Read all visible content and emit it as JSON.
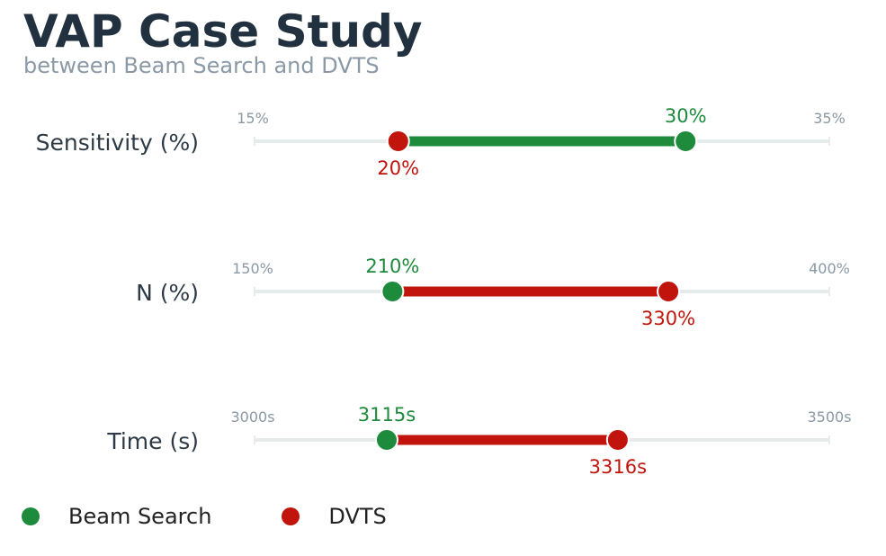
{
  "chart_data": {
    "type": "dumbbell",
    "title": "VAP Case Study",
    "subtitle": "between Beam Search and DVTS",
    "legend_placement": "bottom-left",
    "series": [
      {
        "name": "Beam Search",
        "color": "#1e8a3c"
      },
      {
        "name": "DVTS",
        "color": "#c0140c"
      }
    ],
    "rows": [
      {
        "label": "Sensitivity (%)",
        "min": 15,
        "max": 35,
        "min_label": "15%",
        "max_label": "35%",
        "beam": 30,
        "beam_label": "30%",
        "dvts": 20,
        "dvts_label": "20%",
        "bar_color": "#1e8a3c"
      },
      {
        "label": "N (%)",
        "min": 150,
        "max": 400,
        "min_label": "150%",
        "max_label": "400%",
        "beam": 210,
        "beam_label": "210%",
        "dvts": 330,
        "dvts_label": "330%",
        "bar_color": "#c0140c"
      },
      {
        "label": "Time (s)",
        "min": 3000,
        "max": 3500,
        "min_label": "3000s",
        "max_label": "3500s",
        "beam": 3115,
        "beam_label": "3115s",
        "dvts": 3316,
        "dvts_label": "3316s",
        "bar_color": "#c0140c"
      }
    ]
  }
}
